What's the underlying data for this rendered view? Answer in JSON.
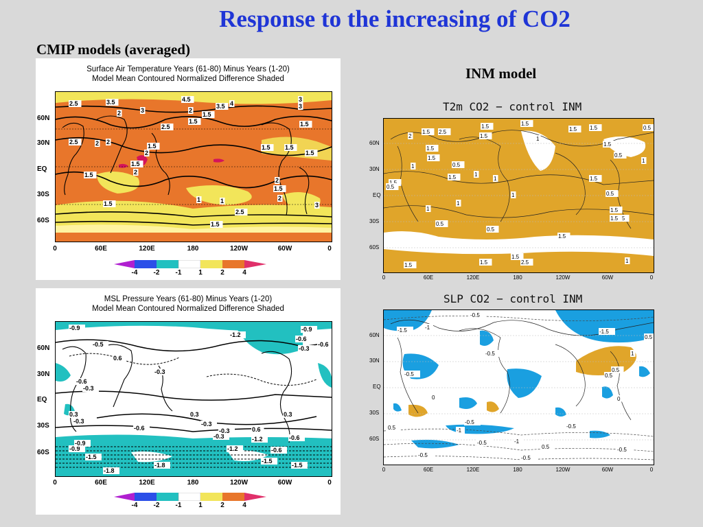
{
  "slide": {
    "title": "Response to the increasing of CO2",
    "cmip_label": "CMIP models (averaged)",
    "inm_label": "INM model"
  },
  "cmip_tas": {
    "header_line1": "Surface Air Temperature  Years (61-80) Minus Years (1-20)",
    "header_line2": "Model Mean Contoured    Normalized Difference Shaded",
    "lat_labels": [
      "60N",
      "30N",
      "EQ",
      "30S",
      "60S"
    ],
    "lon_labels": [
      "0",
      "60E",
      "120E",
      "180",
      "120W",
      "60W",
      "0"
    ],
    "contour_labels": [
      "2.5",
      "3.5",
      "4.5",
      "3",
      "3.5",
      "4",
      "3",
      "2.5",
      "3",
      "2",
      "1.5",
      "2",
      "2.5",
      "2",
      "1.5",
      "1.5",
      "2",
      "1.5",
      "1.5",
      "1.5",
      "1.5",
      "2",
      "1.5",
      "2",
      "1.5",
      "1",
      "1.5",
      "1",
      "2",
      "1.5",
      "2",
      "2.5",
      "1.5",
      "3"
    ],
    "colorbar_ticks": [
      "-4",
      "-2",
      "-1",
      "1",
      "2",
      "4"
    ]
  },
  "cmip_slp": {
    "header_line1": "MSL Pressure  Years (61-80) Minus Years (1-20)",
    "header_line2": "Model Mean Contoured    Normalized Difference Shaded",
    "lat_labels": [
      "60N",
      "30N",
      "EQ",
      "30S",
      "60S"
    ],
    "lon_labels": [
      "0",
      "60E",
      "120E",
      "180",
      "120W",
      "60W",
      "0"
    ],
    "contour_labels": [
      "-0.9",
      "-0.5",
      "0.6",
      "-0.3",
      "-1.2",
      "-0.9",
      "-0.6",
      "-0.3",
      "-0.6",
      "-0.3",
      "0.3",
      "-0.3",
      "0.3",
      "-0.6",
      "0.6",
      "-0.3",
      "0.3",
      "-0.3",
      "-0.6",
      "-1.2",
      "-0.9",
      "-1.5",
      "-1.8",
      "-1.5",
      "-1.8",
      "-1.5",
      "-1.2",
      "-0.6",
      "-0.9",
      "-0.3",
      "-0.6"
    ],
    "colorbar_ticks": [
      "-4",
      "-2",
      "-1",
      "1",
      "2",
      "4"
    ]
  },
  "inm_t2m": {
    "title": "T2m CO2 − control INM",
    "lat_labels": [
      "60N",
      "30N",
      "EQ",
      "30S",
      "60S"
    ],
    "lon_labels": [
      "0",
      "60E",
      "120E",
      "180",
      "120W",
      "60W",
      "0"
    ],
    "contour_labels": [
      "1.5",
      "1.5",
      "2.5",
      "2",
      "1.5",
      "1.5",
      "1.5",
      "1.5",
      "0.5",
      "1",
      "1.5",
      "1.5",
      "1.5",
      "0.5",
      "1",
      "0.5",
      "1",
      "1.5",
      "1",
      "1.5",
      "0.5",
      "0.5",
      "1",
      "1.5",
      "1",
      "1",
      "0.5",
      "0.5",
      "1.5",
      "1.5",
      "1",
      "1.5",
      "0.5",
      "1.5",
      "2.5",
      "1.5",
      "1.5",
      "1"
    ]
  },
  "inm_slp": {
    "title": "SLP CO2 − control INM",
    "lat_labels": [
      "60N",
      "30N",
      "EQ",
      "30S",
      "60S"
    ],
    "lon_labels": [
      "0",
      "60E",
      "120E",
      "180",
      "120W",
      "60W",
      "0"
    ],
    "contour_labels": [
      "-0.5",
      "-1.5",
      "-1",
      "-1.5",
      "0.5",
      "-0.5",
      "0.5",
      "1",
      "0.5",
      "-0.5",
      "0",
      "0",
      "-1",
      "-0.5",
      "-0.5",
      "-1",
      "-0.5",
      "0.5",
      "-0.5",
      "0.5",
      "-0.5",
      "-0.5"
    ]
  },
  "colors": {
    "title_blue": "#1f35d6",
    "warm_orange": "#e8762b",
    "pale_yellow": "#f2e55a",
    "magenta": "#d4145a",
    "cyan": "#22c0c0",
    "inm_orange": "#e0a52a",
    "inm_blue": "#1a9fe0"
  }
}
